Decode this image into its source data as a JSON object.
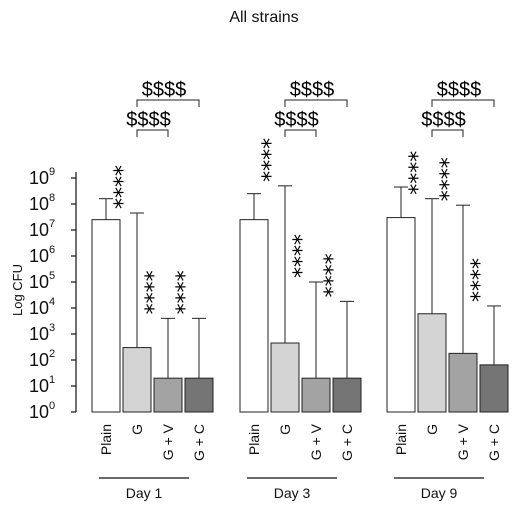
{
  "chart_data": {
    "type": "bar",
    "title": "All strains",
    "xlabel": "",
    "ylabel": "Log CFU",
    "scale": "log10",
    "ylim_exponent": [
      0,
      9
    ],
    "ytick_base": "10",
    "yticks_exponents": [
      "0",
      "1",
      "2",
      "3",
      "4",
      "5",
      "6",
      "7",
      "8",
      "9"
    ],
    "groups": [
      {
        "name": "Day 1",
        "bars": [
          {
            "label": "Plain",
            "value": 25000000,
            "error_upper": 160000000,
            "color": "#ffffff",
            "stars": ""
          },
          {
            "label": "G",
            "value": 300,
            "error_upper": 45000000,
            "color": "#d4d4d4",
            "stars": "****"
          },
          {
            "label": "G + V",
            "value": 20,
            "error_upper": 4000,
            "color": "#a3a3a3",
            "stars": "****"
          },
          {
            "label": "G + C",
            "value": 20,
            "error_upper": 4000,
            "color": "#757575",
            "stars": "****"
          }
        ],
        "brackets": [
          {
            "from": 1,
            "to": 2,
            "label": "$$$$"
          },
          {
            "from": 1,
            "to": 3,
            "label": "$$$$"
          }
        ]
      },
      {
        "name": "Day 3",
        "bars": [
          {
            "label": "Plain",
            "value": 25000000,
            "error_upper": 250000000,
            "color": "#ffffff",
            "stars": ""
          },
          {
            "label": "G",
            "value": 450,
            "error_upper": 500000000,
            "color": "#d4d4d4",
            "stars": "****"
          },
          {
            "label": "G + V",
            "value": 20,
            "error_upper": 100000,
            "color": "#a3a3a3",
            "stars": "****"
          },
          {
            "label": "G + C",
            "value": 20,
            "error_upper": 18000,
            "color": "#757575",
            "stars": "****"
          }
        ],
        "brackets": [
          {
            "from": 1,
            "to": 2,
            "label": "$$$$"
          },
          {
            "from": 1,
            "to": 3,
            "label": "$$$$"
          }
        ]
      },
      {
        "name": "Day 9",
        "bars": [
          {
            "label": "Plain",
            "value": 30000000,
            "error_upper": 450000000,
            "color": "#ffffff",
            "stars": ""
          },
          {
            "label": "G",
            "value": 6000,
            "error_upper": 160000000,
            "color": "#d4d4d4",
            "stars": "****"
          },
          {
            "label": "G + V",
            "value": 180,
            "error_upper": 90000000,
            "color": "#a3a3a3",
            "stars": "****"
          },
          {
            "label": "G + C",
            "value": 65,
            "error_upper": 12000,
            "color": "#757575",
            "stars": "****"
          }
        ],
        "brackets": [
          {
            "from": 1,
            "to": 2,
            "label": "$$$$"
          },
          {
            "from": 1,
            "to": 3,
            "label": "$$$$"
          }
        ]
      }
    ],
    "grid": false,
    "legend": "none"
  }
}
